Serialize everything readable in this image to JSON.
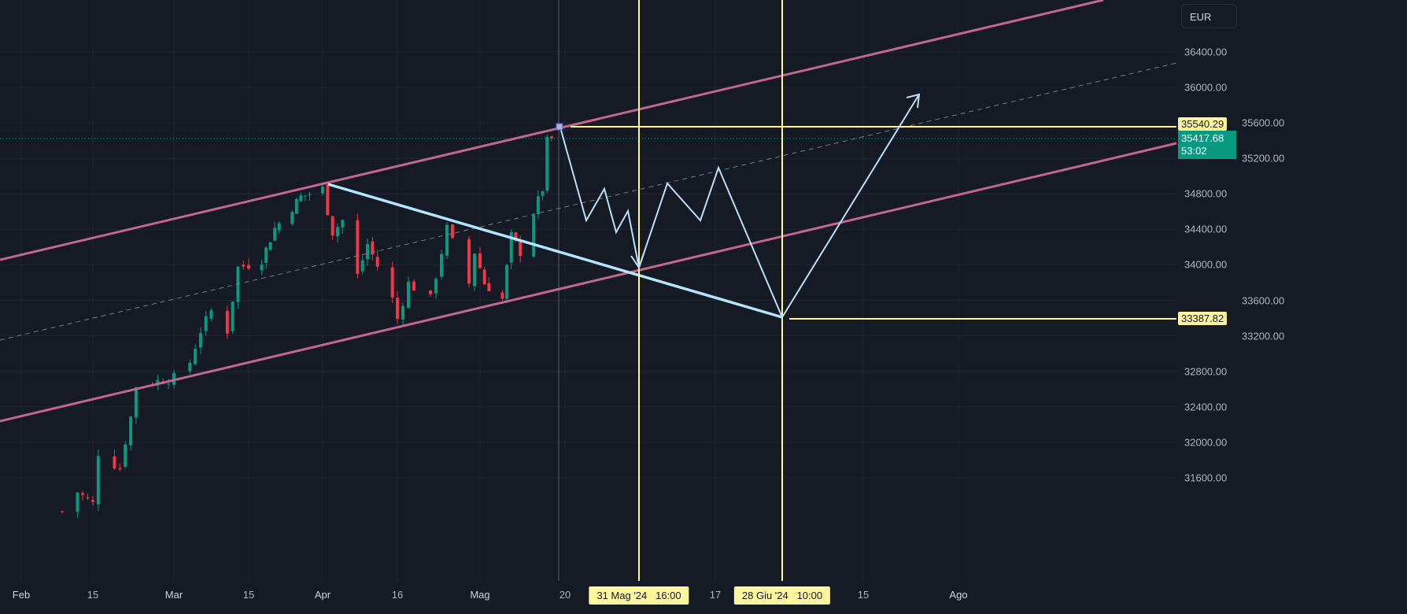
{
  "chart_data": {
    "type": "candlestick",
    "currency": "EUR",
    "y_ticks": [
      "36400.00",
      "36000.00",
      "35600.00",
      "35200.00",
      "34800.00",
      "34400.00",
      "34000.00",
      "33600.00",
      "33200.00",
      "32800.00",
      "32400.00",
      "32000.00",
      "31600.00"
    ],
    "x_ticks": [
      "Feb",
      "15",
      "Mar",
      "15",
      "Apr",
      "16",
      "Mag",
      "20",
      "17",
      "15",
      "Ago"
    ],
    "grid": true,
    "price_path": [
      [
        "2024-02-09",
        31218
      ],
      [
        "2024-02-12",
        31440
      ],
      [
        "2024-02-15",
        31307
      ],
      [
        "2024-02-16",
        31884
      ],
      [
        "2024-02-20",
        31706
      ],
      [
        "2024-02-21",
        32017
      ],
      [
        "2024-02-22",
        32283
      ],
      [
        "2024-02-23",
        32638
      ],
      [
        "2024-03-01",
        32727
      ],
      [
        "2024-03-04",
        32904
      ],
      [
        "2024-03-06",
        33259
      ],
      [
        "2024-03-08",
        33481
      ],
      [
        "2024-03-11",
        33259
      ],
      [
        "2024-03-13",
        33969
      ],
      [
        "2024-03-18",
        34058
      ],
      [
        "2024-03-21",
        34412
      ],
      [
        "2024-03-27",
        34767
      ],
      [
        "2024-04-01",
        34856
      ],
      [
        "2024-04-03",
        34368
      ],
      [
        "2024-04-05",
        34501
      ],
      [
        "2024-04-08",
        33880
      ],
      [
        "2024-04-10",
        34235
      ],
      [
        "2024-04-15",
        33614
      ],
      [
        "2024-04-16",
        33392
      ],
      [
        "2024-04-18",
        33791
      ],
      [
        "2024-04-22",
        33614
      ],
      [
        "2024-04-25",
        34412
      ],
      [
        "2024-04-29",
        33791
      ],
      [
        "2024-04-30",
        34146
      ],
      [
        "2024-05-02",
        33791
      ],
      [
        "2024-05-06",
        33614
      ],
      [
        "2024-05-08",
        34324
      ],
      [
        "2024-05-10",
        34146
      ],
      [
        "2024-05-13",
        34590
      ],
      [
        "2024-05-15",
        34856
      ],
      [
        "2024-05-16",
        35388
      ],
      [
        "2024-05-17",
        35418
      ]
    ],
    "up_color": "#089981",
    "down_color": "#f23645",
    "levels": {
      "upper": "35540.29",
      "lower": "33387.82"
    },
    "last_price": "35417.68",
    "countdown": "53:02",
    "time_markers": [
      "31 Mag '24   16:00",
      "28 Giu '24   10:00"
    ],
    "drawing_colors": {
      "channel": "#c2678f",
      "trendline": "#b3e5fc",
      "projection": "#bbdefb",
      "levels": "#fff59d"
    }
  }
}
